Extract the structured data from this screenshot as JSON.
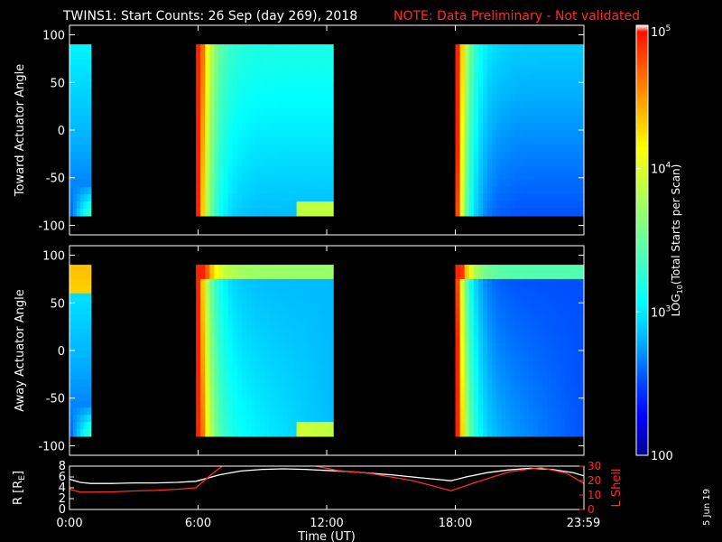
{
  "colors": {
    "background": "#000000",
    "axes": "#ffffff",
    "note": "#ff2a2a",
    "r_line": "#ffffff",
    "lshell_line": "#ff2a2a"
  },
  "header": {
    "title": "TWINS1: Start Counts: 26 Sep (day 269), 2018",
    "note": "NOTE: Data Preliminary - Not validated"
  },
  "colorbar": {
    "label_prefix": "LOG",
    "label_sub": "10",
    "label_suffix": "(Total Starts per Scan)",
    "scale": "log",
    "range": [
      100,
      100000
    ],
    "tick_labels": [
      {
        "base": "10",
        "exp": "5",
        "value": 100000
      },
      {
        "base": "10",
        "exp": "4",
        "value": 10000
      },
      {
        "base": "10",
        "exp": "3",
        "value": 1000
      },
      {
        "base": "",
        "exp": "",
        "text": "100",
        "value": 100
      }
    ],
    "colormap": [
      "#00008c",
      "#0000ff",
      "#0050ff",
      "#00b4ff",
      "#00ffff",
      "#40ffc0",
      "#80ff80",
      "#c0ff40",
      "#ffff00",
      "#ffb000",
      "#ff6000",
      "#ff1000",
      "#ffffff"
    ]
  },
  "time_axis": {
    "label": "Time (UT)",
    "tick_labels": [
      "0:00",
      "6:00",
      "12:00",
      "18:00",
      "23:59"
    ],
    "tick_hours": [
      0,
      6,
      12,
      18,
      23.98
    ],
    "range_hours": [
      0,
      24
    ]
  },
  "footer": {
    "date_stamp": "5 Jun 19"
  },
  "chart_data": [
    {
      "type": "heatmap",
      "ylabel": "Toward Actuator Angle",
      "ylim": [
        -110,
        110
      ],
      "ytick_labels": [
        "100",
        "50",
        "0",
        "-50",
        "-100"
      ],
      "yticks": [
        100,
        50,
        0,
        -50,
        -100
      ],
      "data_coverage_hours": [
        [
          0,
          1.0
        ],
        [
          5.9,
          12.3
        ],
        [
          18.0,
          23.99
        ]
      ],
      "angle_range": [
        -90,
        90
      ]
    },
    {
      "type": "heatmap",
      "ylabel": "Away Actuator Angle",
      "ylim": [
        -110,
        110
      ],
      "ytick_labels": [
        "100",
        "50",
        "0",
        "-50",
        "-100"
      ],
      "yticks": [
        100,
        50,
        0,
        -50,
        -100
      ],
      "data_coverage_hours": [
        [
          0,
          1.0
        ],
        [
          5.9,
          12.3
        ],
        [
          18.0,
          23.99
        ]
      ],
      "angle_range": [
        -90,
        90
      ]
    },
    {
      "type": "line",
      "ylabel": "R [R",
      "ylabel_sub": "E",
      "ylabel_end": "]",
      "ylim": [
        0,
        8
      ],
      "ytick_labels": [
        "0",
        "2",
        "4",
        "6",
        "8"
      ],
      "yticks": [
        0,
        2,
        4,
        6,
        8
      ],
      "y2label": "L Shell",
      "y2lim": [
        0,
        30
      ],
      "y2tick_labels": [
        "0",
        "10",
        "20",
        "30"
      ],
      "y2ticks": [
        0,
        10,
        20,
        30
      ],
      "series": [
        {
          "name": "R",
          "axis": "left",
          "x": [
            0,
            0.5,
            1,
            2,
            3,
            4,
            5,
            5.9,
            7,
            8,
            9,
            10,
            11,
            12,
            13,
            14,
            15,
            16,
            17,
            17.8,
            18.5,
            19.5,
            20.5,
            21.5,
            22.5,
            23.5,
            24
          ],
          "y": [
            5.6,
            5.0,
            4.8,
            4.8,
            4.9,
            4.9,
            5.0,
            5.2,
            6.4,
            7.1,
            7.4,
            7.5,
            7.4,
            7.2,
            7.0,
            6.7,
            6.4,
            6.0,
            5.6,
            5.3,
            6.0,
            6.8,
            7.3,
            7.6,
            7.4,
            6.8,
            6.2
          ]
        },
        {
          "name": "L Shell",
          "axis": "right",
          "x": [
            0,
            0.5,
            1,
            2,
            3,
            4,
            5,
            5.9,
            6.6,
            7.3,
            10.5,
            11.5,
            12.5,
            14,
            16,
            17.8,
            19,
            20.5,
            22,
            23.2,
            24
          ],
          "y": [
            14,
            12,
            12,
            12.2,
            12.8,
            13.2,
            14,
            15,
            24,
            32,
            32,
            30,
            27,
            25,
            20,
            13,
            19,
            26,
            29,
            25,
            18
          ]
        }
      ]
    }
  ]
}
